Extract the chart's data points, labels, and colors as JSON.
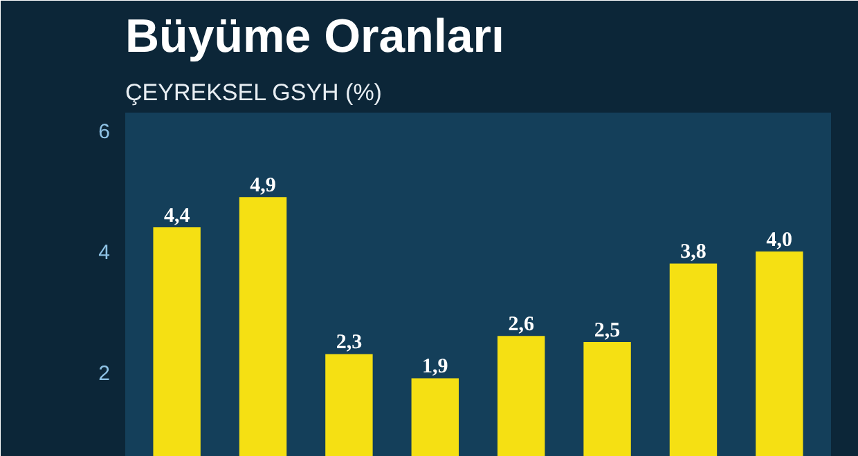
{
  "chart_data": {
    "type": "bar",
    "title": "Büyüme Oranları",
    "subtitle": "ÇEYREKSEL GSYH (%)",
    "categories": [
      null,
      null,
      null,
      null,
      null,
      null,
      null,
      null
    ],
    "values": [
      4.4,
      4.9,
      2.3,
      1.9,
      2.6,
      2.5,
      3.8,
      4.0
    ],
    "color": "#f5e013",
    "ylim": [
      0.6,
      6.3
    ],
    "yticks": [
      2,
      4,
      6
    ],
    "value_labels": [
      "4,4",
      "4,9",
      "2,3",
      "1,9",
      "2,6",
      "2,5",
      "3,8",
      "4,0"
    ],
    "grid": false,
    "tick_labels": "y"
  }
}
